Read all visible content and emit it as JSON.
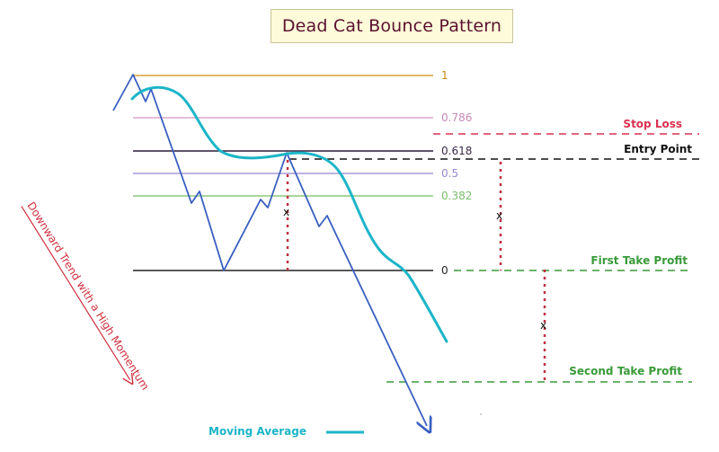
{
  "title": "Dead Cat Bounce Pattern",
  "fib_levels": [
    {
      "label": "1",
      "color": "#d4a030",
      "text_color": "#c98a10"
    },
    {
      "label": "0.786",
      "color": "#d8a8cc",
      "text_color": "#c48ab8"
    },
    {
      "label": "0.618",
      "color": "#2a1a3a",
      "text_color": "#3a2a4a"
    },
    {
      "label": "0.5",
      "color": "#a898d8",
      "text_color": "#9a88d0"
    },
    {
      "label": "0.382",
      "color": "#8cc87c",
      "text_color": "#7cbc6c"
    },
    {
      "label": "0",
      "color": "#222222",
      "text_color": "#222222"
    }
  ],
  "levels": {
    "stop_loss": {
      "label": "Stop Loss",
      "color": "#d83050"
    },
    "entry_point": {
      "label": "Entry Point",
      "color": "#111111"
    },
    "first_take_profit": {
      "label": "First Take Profit",
      "color": "#3a9a3a"
    },
    "second_take_profit": {
      "label": "Second Take Profit",
      "color": "#3a9a3a"
    }
  },
  "distance_marker": "x",
  "side_label": "Downward Trend with a High Momentum",
  "legend": {
    "moving_average_label": "Moving Average",
    "ma_color": "#1bb5c8"
  },
  "colors": {
    "price_line": "#3a5fc0",
    "moving_average": "#1bb5c8",
    "marker_dots": "#c03040",
    "side_text": "#d03040"
  }
}
